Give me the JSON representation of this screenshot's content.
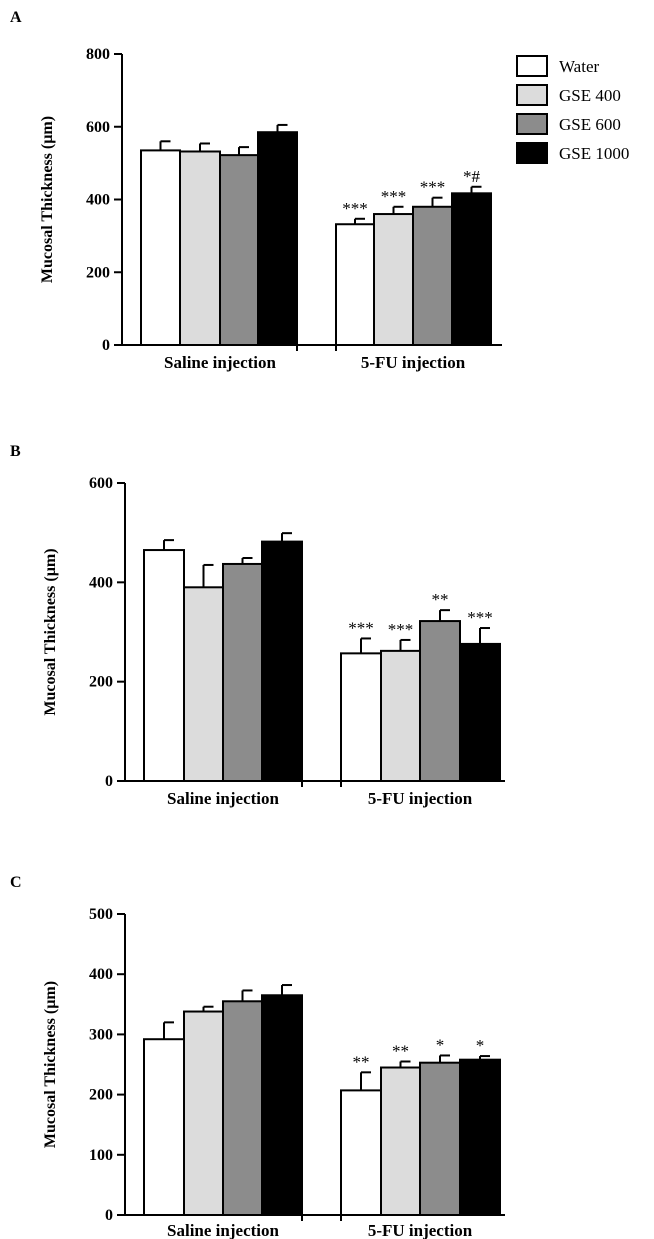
{
  "legend": {
    "items": [
      {
        "label": "Water",
        "color": "#ffffff"
      },
      {
        "label": "GSE 400",
        "color": "#dcdcdc"
      },
      {
        "label": "GSE 600",
        "color": "#8c8c8c"
      },
      {
        "label": "GSE 1000",
        "color": "#000000"
      }
    ]
  },
  "chart_data": [
    {
      "panel": "A",
      "type": "bar",
      "ylabel": "Mucosal Thickness (µm)",
      "ylim": [
        0,
        800
      ],
      "yticks": [
        0,
        200,
        400,
        600,
        800
      ],
      "categories": [
        "Saline injection",
        "5-FU injection"
      ],
      "series": [
        {
          "name": "Water",
          "values": [
            535,
            332
          ],
          "errors": [
            25,
            15
          ]
        },
        {
          "name": "GSE 400",
          "values": [
            532,
            360
          ],
          "errors": [
            22,
            20
          ]
        },
        {
          "name": "GSE 600",
          "values": [
            522,
            380
          ],
          "errors": [
            22,
            25
          ]
        },
        {
          "name": "GSE 1000",
          "values": [
            585,
            417
          ],
          "errors": [
            20,
            18
          ]
        }
      ],
      "significance": [
        [
          "",
          ""
        ],
        [
          "",
          ""
        ],
        [
          "",
          ""
        ],
        [
          "",
          ""
        ]
      ],
      "significance_5fu": [
        "***",
        "***",
        "***",
        "*#"
      ],
      "legend": "top-right"
    },
    {
      "panel": "B",
      "type": "bar",
      "ylabel": "Mucosal Thickness (µm)",
      "ylim": [
        0,
        600
      ],
      "yticks": [
        0,
        200,
        400,
        600
      ],
      "categories": [
        "Saline injection",
        "5-FU injection"
      ],
      "series": [
        {
          "name": "Water",
          "values": [
            465,
            257
          ],
          "errors": [
            20,
            30
          ]
        },
        {
          "name": "GSE 400",
          "values": [
            390,
            262
          ],
          "errors": [
            45,
            22
          ]
        },
        {
          "name": "GSE 600",
          "values": [
            437,
            322
          ],
          "errors": [
            12,
            22
          ]
        },
        {
          "name": "GSE 1000",
          "values": [
            482,
            276
          ],
          "errors": [
            17,
            32
          ]
        }
      ],
      "significance_5fu": [
        "***",
        "***",
        "**",
        "***"
      ]
    },
    {
      "panel": "C",
      "type": "bar",
      "ylabel": "Mucosal Thickness (µm)",
      "ylim": [
        0,
        500
      ],
      "yticks": [
        0,
        100,
        200,
        300,
        400,
        500
      ],
      "categories": [
        "Saline injection",
        "5-FU injection"
      ],
      "series": [
        {
          "name": "Water",
          "values": [
            292,
            207
          ],
          "errors": [
            28,
            30
          ]
        },
        {
          "name": "GSE 400",
          "values": [
            338,
            245
          ],
          "errors": [
            8,
            10
          ]
        },
        {
          "name": "GSE 600",
          "values": [
            355,
            253
          ],
          "errors": [
            18,
            12
          ]
        },
        {
          "name": "GSE 1000",
          "values": [
            365,
            258
          ],
          "errors": [
            17,
            6
          ]
        }
      ],
      "significance_5fu": [
        "**",
        "**",
        "*",
        "*"
      ]
    }
  ]
}
